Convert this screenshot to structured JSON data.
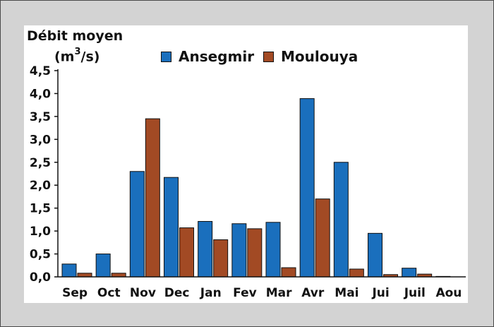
{
  "colors": {
    "series_a": "#1a6fbd",
    "series_b": "#a24a24",
    "frame_bg": "#d3d3d3",
    "plot_bg": "#ffffff"
  },
  "ylabel_line1": "Débit moyen",
  "ylabel_unit_pre": "(m",
  "ylabel_unit_sup": "3",
  "ylabel_unit_post": "/s)",
  "chart_data": {
    "type": "bar",
    "categories": [
      "Sep",
      "Oct",
      "Nov",
      "Dec",
      "Jan",
      "Fev",
      "Mar",
      "Avr",
      "Mai",
      "Jui",
      "Juil",
      "Aou"
    ],
    "series": [
      {
        "name": "Ansegmir",
        "values": [
          0.28,
          0.5,
          2.3,
          2.17,
          1.21,
          1.16,
          1.19,
          3.89,
          2.5,
          0.95,
          0.19,
          0.01
        ]
      },
      {
        "name": "Moulouya",
        "values": [
          0.08,
          0.08,
          3.45,
          1.07,
          0.81,
          1.05,
          0.2,
          1.7,
          0.17,
          0.05,
          0.06,
          0.0
        ]
      }
    ],
    "ylim": [
      0,
      4.5
    ],
    "yticks": [
      "0,0",
      "0,5",
      "1,0",
      "1,5",
      "2,0",
      "2,5",
      "3,0",
      "3,5",
      "4,0",
      "4,5"
    ],
    "legend_placement": "top"
  }
}
